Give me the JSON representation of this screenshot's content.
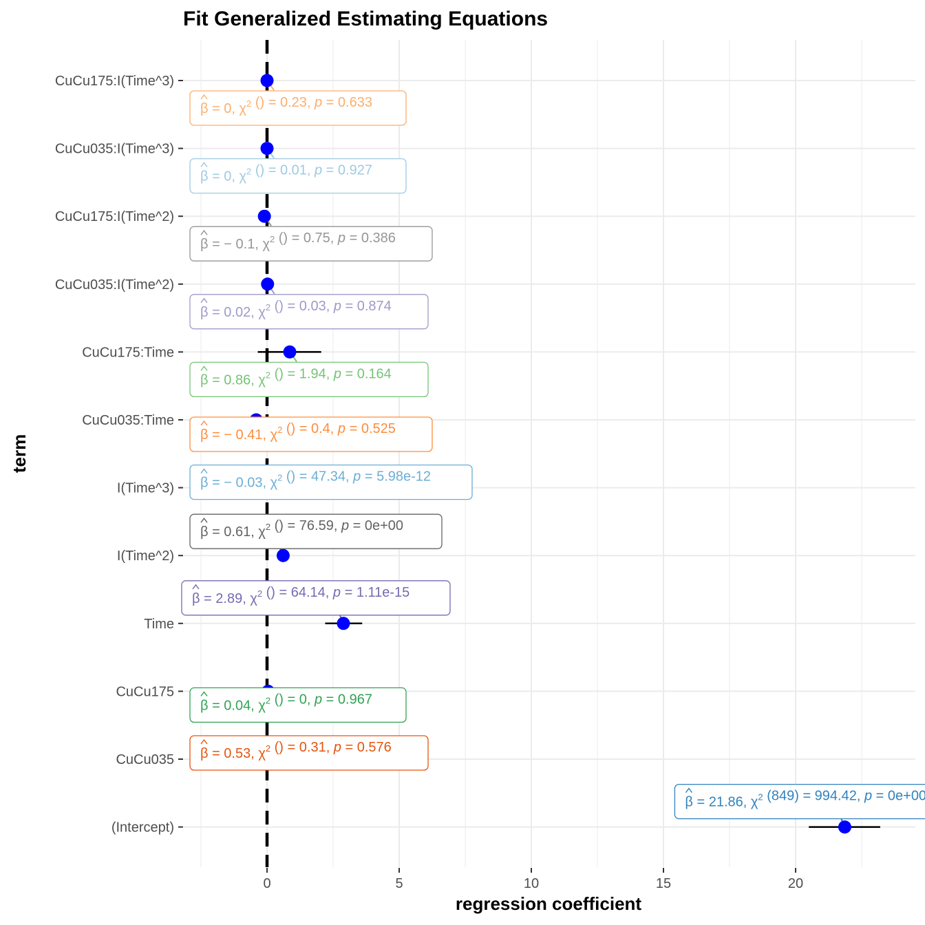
{
  "chart_data": {
    "type": "scatter",
    "title": "Fit Generalized Estimating Equations",
    "xlabel": "regression coefficient",
    "ylabel": "term",
    "xlim": [
      -3.35,
      24.0
    ],
    "xticks": [
      0,
      5,
      10,
      15,
      20
    ],
    "xtick_labels": [
      "0",
      "5",
      "10",
      "15",
      "20"
    ],
    "reference_line_x": 0,
    "grid": true,
    "point_color": "#0000ff",
    "terms": [
      {
        "term": "(Intercept)",
        "estimate": 21.86,
        "ci": [
          20.5,
          23.2
        ],
        "label": {
          "beta": "21.86",
          "df": "849",
          "chi2": "994.42",
          "p": "0e+00"
        },
        "color": "#3182bd"
      },
      {
        "term": "CuCu035",
        "estimate": 0.53,
        "ci": null,
        "label": {
          "beta": "0.53",
          "df": "",
          "chi2": "0.31",
          "p": "0.576"
        },
        "color": "#e6550d"
      },
      {
        "term": "CuCu175",
        "estimate": 0.04,
        "ci": null,
        "label": {
          "beta": "0.04",
          "df": "",
          "chi2": "0",
          "p": "0.967"
        },
        "color": "#31a354"
      },
      {
        "term": "Time",
        "estimate": 2.89,
        "ci": [
          2.2,
          3.6
        ],
        "label": {
          "beta": "2.89",
          "df": "",
          "chi2": "64.14",
          "p": "1.11e-15"
        },
        "color": "#756bb1"
      },
      {
        "term": "I(Time^2)",
        "estimate": 0.61,
        "ci": null,
        "label": {
          "beta": "0.61",
          "df": "",
          "chi2": "76.59",
          "p": "0e+00"
        },
        "color": "#636363"
      },
      {
        "term": "I(Time^3)",
        "estimate": -0.03,
        "ci": null,
        "label": {
          "beta": "− 0.03",
          "df": "",
          "chi2": "47.34",
          "p": "5.98e-12"
        },
        "color": "#6baed6"
      },
      {
        "term": "CuCu035:Time",
        "estimate": -0.41,
        "ci": null,
        "label": {
          "beta": "− 0.41",
          "df": "",
          "chi2": "0.4",
          "p": "0.525"
        },
        "color": "#fd8d3c"
      },
      {
        "term": "CuCu175:Time",
        "estimate": 0.86,
        "ci": [
          -0.35,
          2.05
        ],
        "label": {
          "beta": "0.86",
          "df": "",
          "chi2": "1.94",
          "p": "0.164"
        },
        "color": "#74c476"
      },
      {
        "term": "CuCu035:I(Time^2)",
        "estimate": 0.02,
        "ci": null,
        "label": {
          "beta": "0.02",
          "df": "",
          "chi2": "0.03",
          "p": "0.874"
        },
        "color": "#9e9ac8"
      },
      {
        "term": "CuCu175:I(Time^2)",
        "estimate": -0.1,
        "ci": null,
        "label": {
          "beta": "− 0.1",
          "df": "",
          "chi2": "0.75",
          "p": "0.386"
        },
        "color": "#969696"
      },
      {
        "term": "CuCu035:I(Time^3)",
        "estimate": 0,
        "ci": null,
        "label": {
          "beta": "0",
          "df": "",
          "chi2": "0.01",
          "p": "0.927"
        },
        "color": "#9ecae1"
      },
      {
        "term": "CuCu175:I(Time^3)",
        "estimate": 0,
        "ci": null,
        "label": {
          "beta": "0",
          "df": "",
          "chi2": "0.23",
          "p": "0.633"
        },
        "color": "#fdae6b"
      }
    ]
  }
}
